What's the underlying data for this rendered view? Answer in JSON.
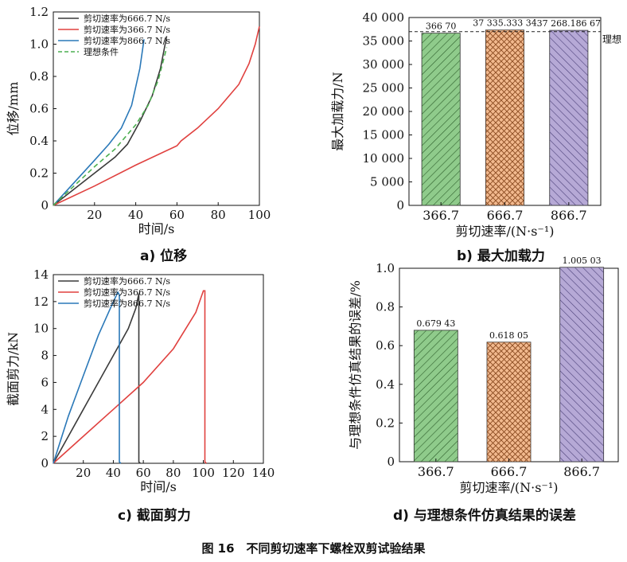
{
  "figure_caption": "图 16　不同剪切速率下螺栓双剪试验结果",
  "panel_captions": {
    "a": "a) 位移",
    "b": "b) 最大加载力",
    "c": "c) 截面剪力",
    "d": "d) 与理想条件仿真结果的误差"
  },
  "colors": {
    "black": "#3a3a3a",
    "red": "#e0413f",
    "blue": "#2a78b8",
    "green_dashed": "#4caf50",
    "bar_green": "#8fcb8b",
    "bar_orange": "#f2b98e",
    "bar_purple": "#b6a9d6"
  },
  "chart_data": [
    {
      "id": "a",
      "type": "line",
      "xlabel": "时间/s",
      "ylabel": "位移/mm",
      "xlim": [
        0,
        100
      ],
      "ylim": [
        0,
        1.2
      ],
      "xticks": [
        20,
        40,
        60,
        80,
        100
      ],
      "yticks": [
        0,
        0.2,
        0.4,
        0.6,
        0.8,
        1.0,
        1.2
      ],
      "legend_position": "top-left",
      "series": [
        {
          "name": "剪切速率为666.7 N/s",
          "color": "#3a3a3a",
          "dash": false,
          "x": [
            0,
            10,
            20,
            30,
            36,
            42,
            48,
            52,
            55
          ],
          "y": [
            0,
            0.1,
            0.2,
            0.3,
            0.38,
            0.52,
            0.68,
            0.85,
            1.05
          ]
        },
        {
          "name": "剪切速率为366.7 N/s",
          "color": "#e0413f",
          "dash": false,
          "x": [
            0,
            20,
            40,
            60,
            62,
            70,
            80,
            90,
            95,
            98,
            100
          ],
          "y": [
            0,
            0.12,
            0.25,
            0.37,
            0.4,
            0.48,
            0.6,
            0.75,
            0.88,
            1.0,
            1.11
          ]
        },
        {
          "name": "剪切速率为866.7 N/s",
          "color": "#2a78b8",
          "dash": false,
          "x": [
            0,
            10,
            20,
            27,
            33,
            38,
            42,
            44
          ],
          "y": [
            0,
            0.14,
            0.28,
            0.38,
            0.48,
            0.62,
            0.85,
            1.03
          ]
        },
        {
          "name": "理想条件",
          "color": "#4caf50",
          "dash": true,
          "x": [
            0,
            10,
            20,
            30,
            40,
            46,
            51,
            55
          ],
          "y": [
            0,
            0.12,
            0.24,
            0.35,
            0.5,
            0.62,
            0.78,
            0.98
          ]
        }
      ]
    },
    {
      "id": "b",
      "type": "bar",
      "xlabel": "剪切速率/(N·s⁻¹)",
      "ylabel": "最大加载力/N",
      "categories": [
        "366.7",
        "666.7",
        "866.7"
      ],
      "values": [
        36670,
        37335.33334,
        37268.18667
      ],
      "value_labels": [
        "366 70",
        "37 335.333 34",
        "37 268.186 67"
      ],
      "ylim": [
        0,
        40000
      ],
      "yticks": [
        0,
        5000,
        10000,
        15000,
        20000,
        25000,
        30000,
        35000,
        40000
      ],
      "ytick_labels": [
        "0",
        "5 000",
        "10 000",
        "15 000",
        "20 000",
        "25 000",
        "30 000",
        "35 000",
        "40 000"
      ],
      "reference_line": {
        "value": 37000,
        "label": "理想"
      },
      "bar_colors": [
        "#8fcb8b",
        "#f2b98e",
        "#b6a9d6"
      ],
      "hatches": [
        "diag",
        "cross",
        "back"
      ]
    },
    {
      "id": "c",
      "type": "line",
      "xlabel": "时间/s",
      "ylabel": "截面剪力/kN",
      "xlim": [
        0,
        140
      ],
      "ylim": [
        0,
        14
      ],
      "xticks": [
        20,
        40,
        60,
        80,
        100,
        120,
        140
      ],
      "yticks": [
        0,
        2,
        4,
        6,
        8,
        10,
        12,
        14
      ],
      "legend_position": "top-left",
      "series": [
        {
          "name": "剪切速率为666.7 N/s",
          "color": "#3a3a3a",
          "x": [
            0,
            10,
            20,
            30,
            40,
            45,
            50,
            55,
            57,
            57,
            58
          ],
          "y": [
            0,
            2,
            4,
            6,
            8,
            9,
            10,
            11.5,
            12.6,
            0.1,
            0
          ]
        },
        {
          "name": "剪切速率为366.7 N/s",
          "color": "#e0413f",
          "x": [
            0,
            20,
            40,
            60,
            80,
            95,
            100,
            101,
            101,
            102
          ],
          "y": [
            0,
            2,
            4,
            6,
            8.5,
            11.2,
            12.8,
            12.8,
            0.1,
            0
          ]
        },
        {
          "name": "剪切速率为866.7 N/s",
          "color": "#2a78b8",
          "x": [
            0,
            10,
            20,
            30,
            38,
            43,
            44,
            44,
            45
          ],
          "y": [
            0,
            3.5,
            6.5,
            9.5,
            11.5,
            12.7,
            12.5,
            0.1,
            0
          ]
        }
      ]
    },
    {
      "id": "d",
      "type": "bar",
      "xlabel": "剪切速率/(N·s⁻¹)",
      "ylabel": "与理想条件仿真结果的误差/%",
      "categories": [
        "366.7",
        "666.7",
        "866.7"
      ],
      "values": [
        0.67943,
        0.61805,
        1.00503
      ],
      "value_labels": [
        "0.679 43",
        "0.618 05",
        "1.005 03"
      ],
      "ylim": [
        0,
        1.0
      ],
      "yticks": [
        0,
        0.2,
        0.4,
        0.6,
        0.8,
        1.0
      ],
      "ytick_labels": [
        "0",
        "0.2",
        "0.4",
        "0.6",
        "0.8",
        "1.0"
      ],
      "bar_colors": [
        "#8fcb8b",
        "#f2b98e",
        "#b6a9d6"
      ],
      "hatches": [
        "diag",
        "cross",
        "back"
      ]
    }
  ]
}
